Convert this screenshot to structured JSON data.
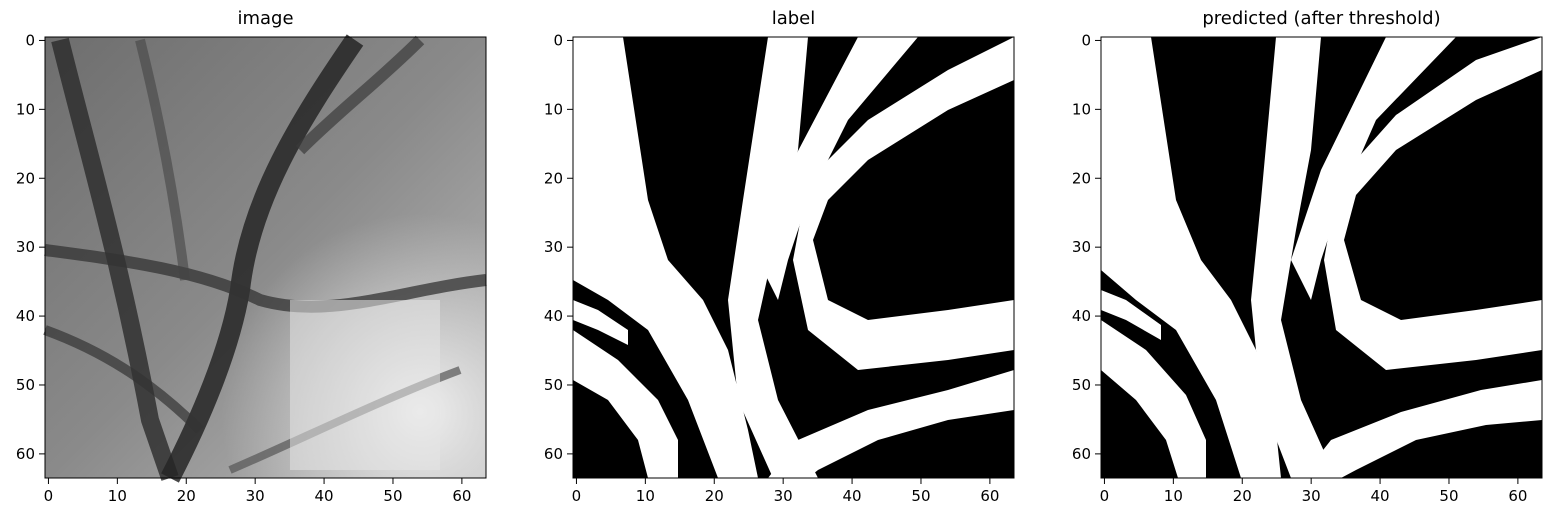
{
  "figure": {
    "panels": [
      {
        "title": "image"
      },
      {
        "title": "label"
      },
      {
        "title": "predicted (after threshold)"
      }
    ],
    "x_ticks": [
      "0",
      "10",
      "20",
      "30",
      "40",
      "50",
      "60"
    ],
    "y_ticks": [
      "0",
      "10",
      "20",
      "30",
      "40",
      "50",
      "60"
    ],
    "image_size": 64
  }
}
